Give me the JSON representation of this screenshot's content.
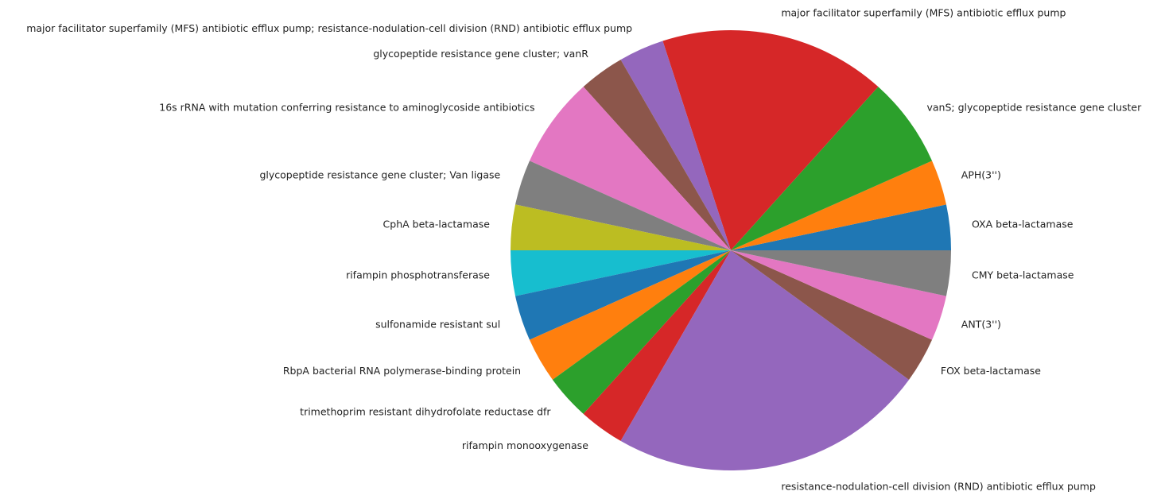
{
  "chart_data": {
    "type": "pie",
    "title": "",
    "start_angle_deg": 0,
    "direction": "counterclockwise",
    "slices": [
      {
        "label": "OXA beta-lactamase",
        "value": 1,
        "color": "#1f77b4"
      },
      {
        "label": "APH(3'')",
        "value": 1,
        "color": "#ff7f0e"
      },
      {
        "label": "vanS; glycopeptide resistance gene cluster",
        "value": 2,
        "color": "#2ca02c"
      },
      {
        "label": "major facilitator superfamily (MFS) antibiotic efflux pump",
        "value": 5,
        "color": "#d62728"
      },
      {
        "label": "major facilitator superfamily (MFS) antibiotic efflux pump; resistance-nodulation-cell division (RND) antibiotic efflux pump",
        "value": 1,
        "color": "#9467bd"
      },
      {
        "label": "glycopeptide resistance gene cluster; vanR",
        "value": 1,
        "color": "#8c564b"
      },
      {
        "label": "16s rRNA with mutation conferring resistance to aminoglycoside antibiotics",
        "value": 2,
        "color": "#e377c2"
      },
      {
        "label": "glycopeptide resistance gene cluster; Van ligase",
        "value": 1,
        "color": "#7f7f7f"
      },
      {
        "label": "CphA beta-lactamase",
        "value": 1,
        "color": "#bcbd22"
      },
      {
        "label": "rifampin phosphotransferase",
        "value": 1,
        "color": "#17becf"
      },
      {
        "label": "sulfonamide resistant sul",
        "value": 1,
        "color": "#1f77b4"
      },
      {
        "label": "RbpA bacterial RNA polymerase-binding protein",
        "value": 1,
        "color": "#ff7f0e"
      },
      {
        "label": "trimethoprim resistant dihydrofolate reductase dfr",
        "value": 1,
        "color": "#2ca02c"
      },
      {
        "label": "rifampin monooxygenase",
        "value": 1,
        "color": "#d62728"
      },
      {
        "label": "resistance-nodulation-cell division (RND) antibiotic efflux pump",
        "value": 7,
        "color": "#9467bd"
      },
      {
        "label": "FOX beta-lactamase",
        "value": 1,
        "color": "#8c564b"
      },
      {
        "label": "ANT(3'')",
        "value": 1,
        "color": "#e377c2"
      },
      {
        "label": "CMY beta-lactamase",
        "value": 1,
        "color": "#7f7f7f"
      }
    ]
  }
}
